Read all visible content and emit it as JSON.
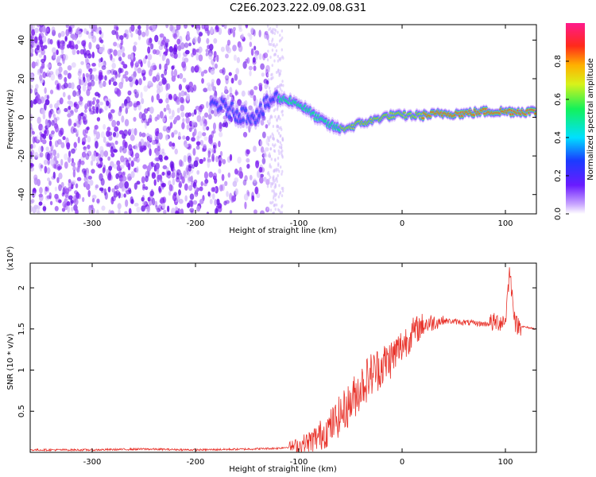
{
  "title": "C2E6.2023.222.09.08.G31",
  "chart_data": [
    {
      "type": "heatmap",
      "xlabel": "Height of straight line (km)",
      "ylabel": "Frequency (Hz)",
      "xlim": [
        -360,
        130
      ],
      "ylim": [
        -50,
        48
      ],
      "xticks": [
        -300,
        -200,
        -100,
        0,
        100
      ],
      "yticks": [
        -40,
        -20,
        0,
        20,
        40
      ],
      "colorbar": {
        "label": "Normalized spectral amplitude",
        "range": [
          0.0,
          1.0
        ],
        "ticks": [
          0.0,
          0.2,
          0.4,
          0.6,
          0.8
        ]
      },
      "ridge": {
        "x": [
          -180,
          -160,
          -140,
          -125,
          -110,
          -100,
          -90,
          -80,
          -70,
          -60,
          -50,
          -40,
          -30,
          -20,
          -10,
          0,
          20,
          40,
          60,
          80,
          100,
          130
        ],
        "y": [
          7,
          2,
          1,
          10,
          9,
          7,
          3,
          -1,
          -4,
          -6,
          -5,
          -3,
          -2,
          0,
          1,
          1,
          1,
          2,
          2,
          3,
          3,
          3
        ]
      }
    },
    {
      "type": "line",
      "xlabel": "Height of straight line (km)",
      "ylabel": "SNR (10 * v/v)",
      "y_multiplier": "(x10⁴)",
      "xlim": [
        -360,
        130
      ],
      "ylim": [
        0,
        2.3
      ],
      "xticks": [
        -300,
        -200,
        -100,
        0,
        100
      ],
      "yticks": [
        0.5,
        1.0,
        1.5,
        2.0
      ],
      "series": [
        {
          "color": "#e8332b",
          "x": [
            -360,
            -300,
            -250,
            -200,
            -150,
            -120,
            -100,
            -90,
            -80,
            -70,
            -60,
            -50,
            -40,
            -30,
            -20,
            -10,
            0,
            10,
            20,
            30,
            40,
            60,
            80,
            100,
            104,
            110,
            120,
            130
          ],
          "y": [
            0.03,
            0.03,
            0.04,
            0.03,
            0.04,
            0.05,
            0.08,
            0.12,
            0.2,
            0.3,
            0.45,
            0.6,
            0.8,
            0.95,
            1.05,
            1.15,
            1.3,
            1.45,
            1.55,
            1.58,
            1.6,
            1.58,
            1.56,
            1.6,
            2.2,
            1.55,
            1.52,
            1.5
          ]
        }
      ]
    }
  ],
  "colors": {
    "line": "#e8332b",
    "heat_low": "#7b1bf0",
    "heat_peak": "#e21c2c"
  }
}
